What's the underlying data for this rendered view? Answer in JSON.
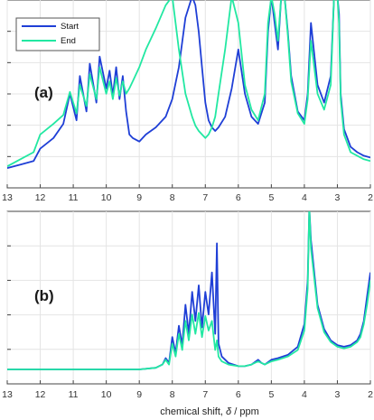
{
  "figure": {
    "x_axis_label": "chemical shift,",
    "x_axis_symbol": "δ",
    "x_axis_unit": "/ ppm"
  },
  "chart_data": [
    {
      "type": "line",
      "panel_label": "(a)",
      "title": "",
      "xlabel": "",
      "ylabel": "",
      "x_reversed": true,
      "xlim": [
        13,
        2
      ],
      "ylim": [
        0,
        1
      ],
      "x_ticks": [
        13,
        12,
        11,
        10,
        9,
        8,
        7,
        6,
        5,
        4,
        3,
        2
      ],
      "grid": true,
      "legend": {
        "position": "top-left",
        "entries": [
          "Start",
          "End"
        ]
      },
      "series": [
        {
          "name": "Start",
          "color": "#1f3fd6",
          "x": [
            13.0,
            12.6,
            12.2,
            12.0,
            11.6,
            11.3,
            11.1,
            10.9,
            10.8,
            10.6,
            10.5,
            10.3,
            10.2,
            10.0,
            9.9,
            9.8,
            9.7,
            9.6,
            9.5,
            9.4,
            9.3,
            9.2,
            9.0,
            8.8,
            8.5,
            8.2,
            8.0,
            7.8,
            7.6,
            7.4,
            7.3,
            7.2,
            7.1,
            7.0,
            6.9,
            6.8,
            6.7,
            6.6,
            6.4,
            6.2,
            6.0,
            5.8,
            5.6,
            5.4,
            5.2,
            5.1,
            5.0,
            4.9,
            4.8,
            4.7,
            4.6,
            4.5,
            4.4,
            4.2,
            4.0,
            3.9,
            3.8,
            3.6,
            3.4,
            3.2,
            3.1,
            3.0,
            2.95,
            2.9,
            2.8,
            2.6,
            2.4,
            2.2,
            2.0
          ],
          "y": [
            0.03,
            0.05,
            0.07,
            0.14,
            0.2,
            0.28,
            0.45,
            0.3,
            0.55,
            0.35,
            0.62,
            0.4,
            0.66,
            0.48,
            0.58,
            0.44,
            0.6,
            0.42,
            0.55,
            0.35,
            0.22,
            0.2,
            0.18,
            0.22,
            0.26,
            0.32,
            0.42,
            0.6,
            0.88,
            1.0,
            0.95,
            0.8,
            0.6,
            0.4,
            0.3,
            0.26,
            0.24,
            0.26,
            0.32,
            0.48,
            0.7,
            0.45,
            0.32,
            0.28,
            0.4,
            0.8,
            1.0,
            0.85,
            0.7,
            1.0,
            1.0,
            0.8,
            0.55,
            0.35,
            0.3,
            0.45,
            0.85,
            0.5,
            0.4,
            0.55,
            1.0,
            1.0,
            0.9,
            0.45,
            0.25,
            0.15,
            0.12,
            0.1,
            0.09
          ]
        },
        {
          "name": "End",
          "color": "#22e8a2",
          "x": [
            13.0,
            12.6,
            12.2,
            12.0,
            11.6,
            11.3,
            11.1,
            10.9,
            10.8,
            10.6,
            10.5,
            10.3,
            10.2,
            10.0,
            9.9,
            9.8,
            9.7,
            9.6,
            9.5,
            9.4,
            9.3,
            9.2,
            9.0,
            8.8,
            8.5,
            8.2,
            8.0,
            7.8,
            7.6,
            7.4,
            7.3,
            7.2,
            7.1,
            7.0,
            6.9,
            6.8,
            6.7,
            6.6,
            6.4,
            6.2,
            6.0,
            5.8,
            5.6,
            5.4,
            5.2,
            5.1,
            5.0,
            4.9,
            4.8,
            4.7,
            4.6,
            4.5,
            4.4,
            4.2,
            4.0,
            3.9,
            3.8,
            3.6,
            3.4,
            3.2,
            3.1,
            3.0,
            2.95,
            2.9,
            2.8,
            2.6,
            2.4,
            2.2,
            2.0
          ],
          "y": [
            0.04,
            0.08,
            0.12,
            0.22,
            0.28,
            0.33,
            0.46,
            0.34,
            0.5,
            0.38,
            0.56,
            0.42,
            0.6,
            0.45,
            0.52,
            0.42,
            0.54,
            0.44,
            0.52,
            0.45,
            0.48,
            0.52,
            0.6,
            0.7,
            0.82,
            0.95,
            1.0,
            0.7,
            0.45,
            0.32,
            0.27,
            0.24,
            0.22,
            0.2,
            0.22,
            0.26,
            0.32,
            0.45,
            0.7,
            1.0,
            0.85,
            0.5,
            0.36,
            0.3,
            0.45,
            0.85,
            1.0,
            0.9,
            0.75,
            1.0,
            1.0,
            0.78,
            0.52,
            0.34,
            0.28,
            0.42,
            0.75,
            0.45,
            0.36,
            0.5,
            1.0,
            1.0,
            0.85,
            0.42,
            0.22,
            0.12,
            0.1,
            0.08,
            0.07
          ]
        }
      ]
    },
    {
      "type": "line",
      "panel_label": "(b)",
      "title": "",
      "xlabel": "",
      "ylabel": "",
      "x_reversed": true,
      "xlim": [
        13,
        2
      ],
      "ylim": [
        0,
        1
      ],
      "x_ticks": [
        13,
        12,
        11,
        10,
        9,
        8,
        7,
        6,
        5,
        4,
        3,
        2
      ],
      "grid": true,
      "series": [
        {
          "name": "Start",
          "color": "#1f3fd6",
          "x": [
            13.0,
            12.0,
            11.0,
            10.0,
            9.0,
            8.5,
            8.3,
            8.2,
            8.1,
            8.0,
            7.9,
            7.8,
            7.7,
            7.6,
            7.5,
            7.4,
            7.3,
            7.2,
            7.1,
            7.0,
            6.9,
            6.8,
            6.7,
            6.65,
            6.6,
            6.5,
            6.3,
            6.0,
            5.8,
            5.6,
            5.4,
            5.3,
            5.2,
            5.0,
            4.8,
            4.5,
            4.2,
            4.0,
            3.9,
            3.85,
            3.8,
            3.6,
            3.4,
            3.2,
            3.0,
            2.8,
            2.6,
            2.4,
            2.3,
            2.2,
            2.1,
            2.0
          ],
          "y": [
            0.0,
            0.0,
            0.0,
            0.0,
            0.0,
            0.01,
            0.03,
            0.07,
            0.04,
            0.2,
            0.1,
            0.27,
            0.15,
            0.4,
            0.22,
            0.48,
            0.3,
            0.52,
            0.26,
            0.48,
            0.34,
            0.6,
            0.22,
            0.78,
            0.16,
            0.08,
            0.04,
            0.02,
            0.02,
            0.03,
            0.06,
            0.04,
            0.03,
            0.06,
            0.07,
            0.09,
            0.14,
            0.28,
            0.55,
            1.0,
            0.8,
            0.4,
            0.25,
            0.18,
            0.15,
            0.14,
            0.15,
            0.18,
            0.22,
            0.3,
            0.45,
            0.6
          ]
        },
        {
          "name": "End",
          "color": "#22e8a2",
          "x": [
            13.0,
            12.0,
            11.0,
            10.0,
            9.0,
            8.5,
            8.3,
            8.2,
            8.1,
            8.0,
            7.9,
            7.8,
            7.7,
            7.6,
            7.5,
            7.4,
            7.3,
            7.2,
            7.1,
            7.0,
            6.9,
            6.8,
            6.7,
            6.65,
            6.6,
            6.5,
            6.3,
            6.0,
            5.8,
            5.6,
            5.4,
            5.3,
            5.2,
            5.0,
            4.8,
            4.5,
            4.2,
            4.0,
            3.9,
            3.85,
            3.8,
            3.6,
            3.4,
            3.2,
            3.0,
            2.8,
            2.6,
            2.4,
            2.3,
            2.2,
            2.1,
            2.0
          ],
          "y": [
            0.0,
            0.0,
            0.0,
            0.0,
            0.0,
            0.01,
            0.03,
            0.06,
            0.03,
            0.16,
            0.08,
            0.22,
            0.12,
            0.3,
            0.18,
            0.34,
            0.22,
            0.35,
            0.2,
            0.33,
            0.24,
            0.3,
            0.12,
            0.18,
            0.08,
            0.05,
            0.03,
            0.02,
            0.02,
            0.03,
            0.05,
            0.04,
            0.03,
            0.05,
            0.06,
            0.08,
            0.12,
            0.24,
            0.5,
            1.0,
            0.75,
            0.38,
            0.23,
            0.17,
            0.14,
            0.13,
            0.14,
            0.17,
            0.2,
            0.28,
            0.4,
            0.55
          ]
        }
      ]
    }
  ]
}
